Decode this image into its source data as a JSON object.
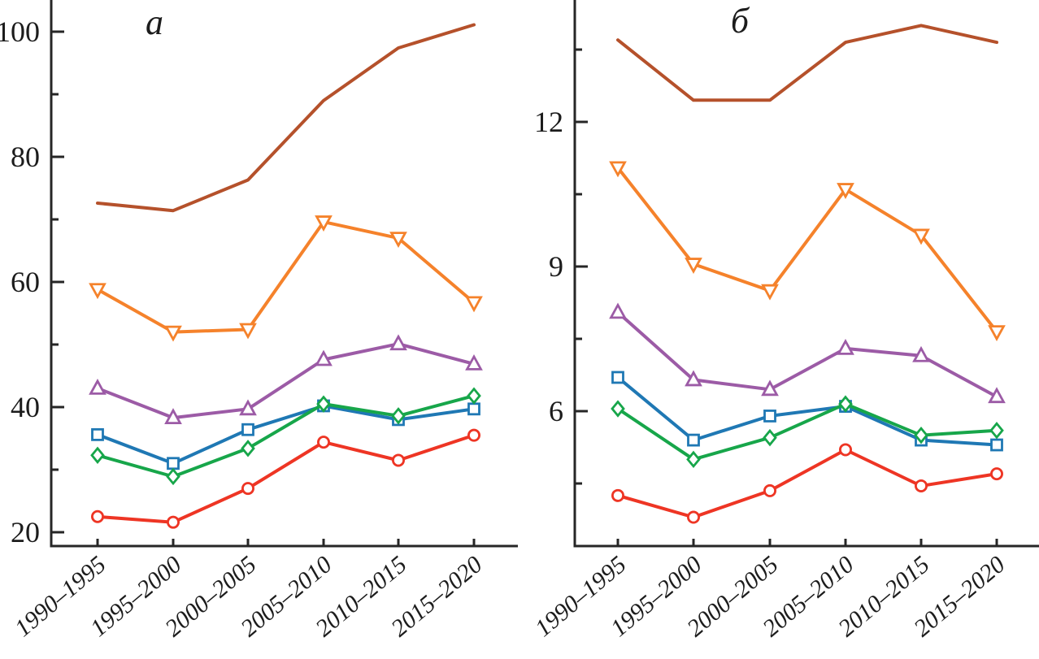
{
  "figure": {
    "background": "#ffffff",
    "axis_color": "#262626",
    "text_color": "#1c1c1c"
  },
  "chart_data": [
    {
      "id": "a",
      "type": "line",
      "title": "a",
      "categories": [
        "1990–1995",
        "1995–2000",
        "2000–2005",
        "2005–2010",
        "2010–2015",
        "2015–2020"
      ],
      "xlabel": "",
      "ylabel": "",
      "ylim": [
        17.8,
        105.1
      ],
      "yticks_major": [
        20,
        40,
        60,
        80,
        100
      ],
      "yticks_minor": [
        30,
        50,
        70,
        90
      ],
      "grid": false,
      "legend_position": "none",
      "series": [
        {
          "name": "dark-red-plain",
          "marker": "none",
          "color": "#B5512B",
          "values": [
            72.6,
            71.4,
            76.3,
            89.0,
            97.4,
            101.1
          ]
        },
        {
          "name": "orange-triangle-down",
          "marker": "triangle-down",
          "color": "#F5822B",
          "values": [
            58.8,
            52.0,
            52.4,
            69.6,
            67.0,
            56.7
          ]
        },
        {
          "name": "purple-triangle-up",
          "marker": "triangle-up",
          "color": "#9C5BA6",
          "values": [
            43.0,
            38.3,
            39.7,
            47.6,
            50.1,
            46.9
          ]
        },
        {
          "name": "blue-square",
          "marker": "square",
          "color": "#1F78B4",
          "values": [
            35.6,
            31.0,
            36.4,
            40.2,
            38.0,
            39.7
          ]
        },
        {
          "name": "green-diamond",
          "marker": "diamond",
          "color": "#17A64A",
          "values": [
            32.3,
            28.9,
            33.4,
            40.5,
            38.6,
            41.8
          ]
        },
        {
          "name": "red-circle",
          "marker": "circle",
          "color": "#EE3524",
          "values": [
            22.5,
            21.6,
            27.0,
            34.4,
            31.5,
            35.5
          ]
        }
      ]
    },
    {
      "id": "b",
      "type": "line",
      "title": "б",
      "categories": [
        "1990–1995",
        "1995–2000",
        "2000–2005",
        "2005–2010",
        "2010–2015",
        "2015–2020"
      ],
      "xlabel": "",
      "ylabel": "",
      "ylim": [
        3.2,
        14.5
      ],
      "yticks_major": [
        6,
        9,
        12
      ],
      "yticks_minor": [
        4.5,
        7.5,
        10.5,
        13.5
      ],
      "grid": false,
      "legend_position": "none",
      "series": [
        {
          "name": "dark-red-plain",
          "marker": "none",
          "color": "#B5512B",
          "values": [
            13.7,
            12.45,
            12.45,
            13.65,
            14.0,
            13.65
          ]
        },
        {
          "name": "orange-triangle-down",
          "marker": "triangle-down",
          "color": "#F5822B",
          "values": [
            11.05,
            9.05,
            8.5,
            10.6,
            9.65,
            7.65
          ]
        },
        {
          "name": "purple-triangle-up",
          "marker": "triangle-up",
          "color": "#9C5BA6",
          "values": [
            8.05,
            6.65,
            6.45,
            7.3,
            7.15,
            6.3
          ]
        },
        {
          "name": "blue-square",
          "marker": "square",
          "color": "#1F78B4",
          "values": [
            6.7,
            5.4,
            5.9,
            6.1,
            5.4,
            5.3
          ]
        },
        {
          "name": "green-diamond",
          "marker": "diamond",
          "color": "#17A64A",
          "values": [
            6.05,
            5.0,
            5.45,
            6.15,
            5.5,
            5.6
          ]
        },
        {
          "name": "red-circle",
          "marker": "circle",
          "color": "#EE3524",
          "values": [
            4.25,
            3.8,
            4.35,
            5.2,
            4.45,
            4.7
          ]
        }
      ]
    }
  ]
}
